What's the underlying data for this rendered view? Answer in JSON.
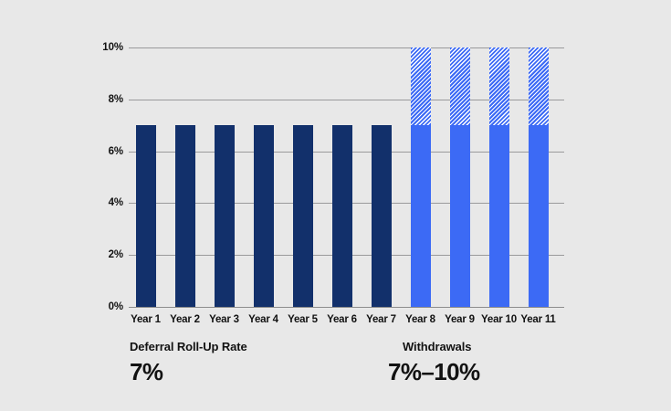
{
  "colors": {
    "background": "#e8e8e8",
    "navy": "#12306b",
    "blue": "#3c6af5",
    "hatch_background": "#ffffff",
    "gridline": "#9a9a9b",
    "axis_line": "#8c8c8c",
    "text": "#121212"
  },
  "chart_data": {
    "type": "bar",
    "stacked": true,
    "title": "",
    "xlabel": "",
    "ylabel": "",
    "ylim": [
      0,
      10
    ],
    "grid": true,
    "legend_position": "below",
    "yticks": [
      {
        "value": 0,
        "label": "0%"
      },
      {
        "value": 2,
        "label": "2%"
      },
      {
        "value": 4,
        "label": "4%"
      },
      {
        "value": 6,
        "label": "6%"
      },
      {
        "value": 8,
        "label": "8%"
      },
      {
        "value": 10,
        "label": "10%"
      }
    ],
    "categories": [
      "Year 1",
      "Year 2",
      "Year 3",
      "Year 4",
      "Year 5",
      "Year 6",
      "Year 7",
      "Year 8",
      "Year 9",
      "Year 10",
      "Year 11"
    ],
    "groups": {
      "deferral": {
        "name": "Deferral Roll-Up Rate",
        "color": "#12306b",
        "pattern": "solid"
      },
      "withdrawals": {
        "name": "Withdrawals",
        "color": "#3c6af5",
        "pattern": "solid-with-hatched-range"
      }
    },
    "bars": [
      {
        "category": "Year 1",
        "group": "deferral",
        "solid_value": 7,
        "hatched_to": null
      },
      {
        "category": "Year 2",
        "group": "deferral",
        "solid_value": 7,
        "hatched_to": null
      },
      {
        "category": "Year 3",
        "group": "deferral",
        "solid_value": 7,
        "hatched_to": null
      },
      {
        "category": "Year 4",
        "group": "deferral",
        "solid_value": 7,
        "hatched_to": null
      },
      {
        "category": "Year 5",
        "group": "deferral",
        "solid_value": 7,
        "hatched_to": null
      },
      {
        "category": "Year 6",
        "group": "deferral",
        "solid_value": 7,
        "hatched_to": null
      },
      {
        "category": "Year 7",
        "group": "deferral",
        "solid_value": 7,
        "hatched_to": null
      },
      {
        "category": "Year 8",
        "group": "withdrawals",
        "solid_value": 7,
        "hatched_to": 10
      },
      {
        "category": "Year 9",
        "group": "withdrawals",
        "solid_value": 7,
        "hatched_to": 10
      },
      {
        "category": "Year 10",
        "group": "withdrawals",
        "solid_value": 7,
        "hatched_to": 10
      },
      {
        "category": "Year 11",
        "group": "withdrawals",
        "solid_value": 7,
        "hatched_to": 10
      }
    ]
  },
  "footnotes": {
    "deferral": {
      "label": "Deferral Roll-Up Rate",
      "value": "7%"
    },
    "withdrawals": {
      "label": "Withdrawals",
      "value": "7%–10%"
    }
  }
}
